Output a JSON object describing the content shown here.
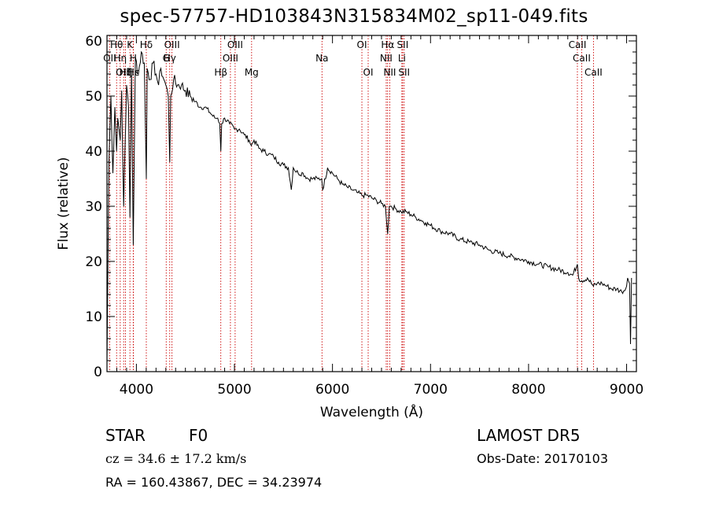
{
  "title": "spec-57757-HD103843N315834M02_sp11-049.fits",
  "info": {
    "class_label": "STAR",
    "subclass": "F0",
    "survey": "LAMOST  DR5",
    "cz": "cz = 34.6 ± 17.2 km/s",
    "obs_date": "Obs-Date: 20170103",
    "radec": "RA = 160.43867, DEC =  34.23974"
  },
  "colors": {
    "line": "#000000",
    "marker": "#cc0000",
    "background": "#ffffff"
  },
  "chart_data": {
    "type": "line",
    "xlabel": "Wavelength (Å)",
    "ylabel": "Flux (relative)",
    "xlim": [
      3700,
      9100
    ],
    "ylim": [
      0,
      61
    ],
    "x_ticks": [
      4000,
      5000,
      6000,
      7000,
      8000,
      9000
    ],
    "y_ticks": [
      0,
      10,
      20,
      30,
      40,
      50,
      60
    ],
    "series": [
      {
        "x": [
          3700,
          3720,
          3740,
          3760,
          3780,
          3798,
          3810,
          3835,
          3850,
          3870,
          3889,
          3900,
          3920,
          3934,
          3950,
          3968,
          3990,
          4020,
          4050,
          4080,
          4101,
          4110,
          4140,
          4170,
          4200,
          4226,
          4250,
          4280,
          4300,
          4325,
          4340,
          4350,
          4380,
          4420,
          4460,
          4500,
          4550,
          4600,
          4650,
          4700,
          4750,
          4800,
          4830,
          4850,
          4861,
          4870,
          4900,
          4950,
          5000,
          5050,
          5100,
          5150,
          5172,
          5200,
          5250,
          5300,
          5350,
          5400,
          5450,
          5500,
          5550,
          5580,
          5600,
          5650,
          5700,
          5750,
          5800,
          5850,
          5890,
          5900,
          5950,
          6000,
          6050,
          6100,
          6150,
          6200,
          6250,
          6300,
          6350,
          6400,
          6450,
          6500,
          6540,
          6563,
          6580,
          6600,
          6650,
          6700,
          6750,
          6800,
          6850,
          6900,
          6950,
          7000,
          7100,
          7200,
          7300,
          7400,
          7500,
          7600,
          7700,
          7800,
          7900,
          8000,
          8100,
          8200,
          8300,
          8400,
          8450,
          8498,
          8510,
          8542,
          8600,
          8662,
          8700,
          8750,
          8800,
          8850,
          8900,
          8950,
          8990,
          9010,
          9030,
          9040,
          9050
        ],
        "y": [
          2,
          38,
          50,
          36,
          48,
          40,
          46,
          42,
          51,
          30,
          44,
          52,
          48,
          28,
          55,
          23,
          57,
          54,
          58,
          56,
          35,
          55,
          53,
          56,
          54,
          52,
          55,
          53,
          52,
          50,
          38,
          50,
          53,
          52,
          52,
          51,
          50,
          49,
          48,
          48,
          47,
          46,
          46,
          45,
          40,
          45,
          46,
          45,
          44,
          44,
          43,
          42,
          41,
          42,
          40.5,
          40,
          39.5,
          39,
          38,
          37.5,
          37,
          33,
          37,
          36,
          36,
          35,
          35,
          35,
          35,
          33,
          37,
          36,
          35,
          34,
          33.5,
          33,
          32.5,
          32,
          32,
          31.5,
          31,
          30.5,
          30,
          25,
          30,
          30,
          29.5,
          29,
          29,
          28.5,
          28,
          27.5,
          27,
          26.5,
          25.5,
          25,
          24,
          23.5,
          23,
          22,
          21.5,
          21,
          20.5,
          20,
          19.5,
          19,
          18.5,
          18,
          17.5,
          19.5,
          17,
          16.5,
          17,
          15.5,
          16,
          16,
          15.5,
          15,
          15,
          14.5,
          15,
          17,
          16,
          5,
          17
        ]
      }
    ],
    "lines": [
      {
        "label": "Hθ",
        "x": 3798,
        "row": 0
      },
      {
        "label": "K",
        "x": 3934,
        "row": 0
      },
      {
        "label": "Hδ",
        "x": 4101,
        "row": 0
      },
      {
        "label": "OIII",
        "x": 4363,
        "row": 0
      },
      {
        "label": "OIII",
        "x": 5007,
        "row": 0
      },
      {
        "label": "OI",
        "x": 6300,
        "row": 0
      },
      {
        "label": "Hα",
        "x": 6563,
        "row": 0
      },
      {
        "label": "SII",
        "x": 6716,
        "row": 0
      },
      {
        "label": "CaII",
        "x": 8498,
        "row": 0
      },
      {
        "label": "OII",
        "x": 3727,
        "row": 1
      },
      {
        "label": "Hη",
        "x": 3835,
        "row": 1
      },
      {
        "label": "H",
        "x": 3968,
        "row": 1
      },
      {
        "label": "G",
        "x": 4304,
        "row": 1
      },
      {
        "label": "Hγ",
        "x": 4340,
        "row": 1
      },
      {
        "label": "OIII",
        "x": 4959,
        "row": 1
      },
      {
        "label": "Na",
        "x": 5893,
        "row": 1
      },
      {
        "label": "NII",
        "x": 6548,
        "row": 1
      },
      {
        "label": "Li",
        "x": 6708,
        "row": 1
      },
      {
        "label": "CaII",
        "x": 8542,
        "row": 1
      },
      {
        "label": "OIII",
        "x": 3870,
        "row": 2
      },
      {
        "label": "Hζ",
        "x": 3889,
        "row": 2
      },
      {
        "label": "Hε",
        "x": 3970,
        "row": 2
      },
      {
        "label": "Hβ",
        "x": 4861,
        "row": 2
      },
      {
        "label": "Mg",
        "x": 5175,
        "row": 2
      },
      {
        "label": "OI",
        "x": 6364,
        "row": 2
      },
      {
        "label": "NII",
        "x": 6584,
        "row": 2
      },
      {
        "label": "SII",
        "x": 6731,
        "row": 2
      },
      {
        "label": "CaII",
        "x": 8662,
        "row": 2
      }
    ]
  }
}
